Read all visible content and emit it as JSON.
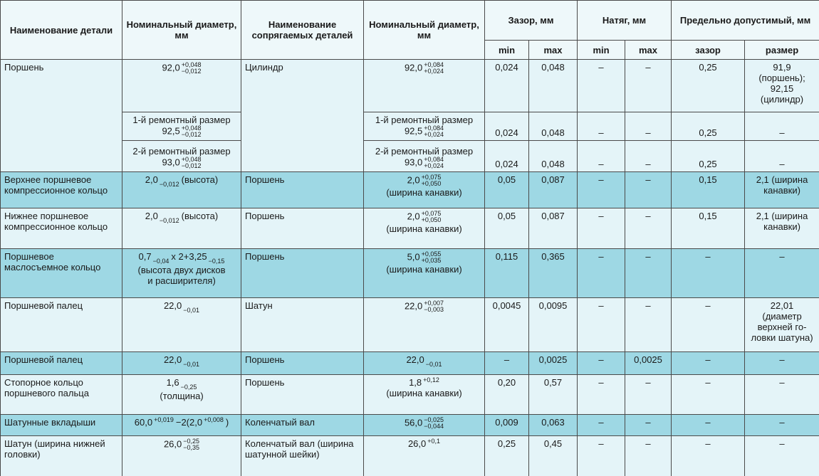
{
  "header": {
    "columns": [
      "Наименование детали",
      "Номинальный диаметр, мм",
      "Наименование сопрягаемых деталей",
      "Номинальный диаметр, мм",
      "Зазор, мм",
      "Натяг, мм",
      "Предельно допустимый, мм"
    ],
    "subcolumns": [
      "min",
      "max",
      "min",
      "max",
      "зазор",
      "размер"
    ]
  },
  "rows": [
    {
      "part": "Поршень",
      "mating": "Цилиндр",
      "fits": [
        {
          "diam": [
            [
              "92,0",
              {
                "sup": "+0,048",
                "sub": "−0,012"
              }
            ]
          ],
          "mating_diam": [
            [
              "92,0",
              {
                "sup": "+0,084",
                "sub": "+0,024"
              }
            ]
          ],
          "gap_min": "0,024",
          "gap_max": "0,048",
          "int_min": "–",
          "int_max": "–",
          "limit_gap": "0,25",
          "limit_size": [
            "91,9",
            "(поршень);",
            "92,15",
            "(цилиндр)"
          ]
        },
        {
          "diam": [
            "1-й ремонтный размер",
            [
              "92,5",
              {
                "sup": "+0,048",
                "sub": "−0,012"
              }
            ]
          ],
          "mating_diam": [
            "1-й ремонтный размер",
            [
              "92,5",
              {
                "sup": "+0,084",
                "sub": "+0,024"
              }
            ]
          ],
          "gap_min": "0,024",
          "gap_max": "0,048",
          "int_min": "–",
          "int_max": "–",
          "limit_gap": "0,25",
          "limit_size": "–"
        },
        {
          "diam": [
            "2-й ремонтный размер",
            [
              "93,0",
              {
                "sup": "+0,048",
                "sub": "−0,012"
              }
            ]
          ],
          "mating_diam": [
            "2-й ремонтный размер",
            [
              "93,0",
              {
                "sup": "+0,084",
                "sub": "+0,024"
              }
            ]
          ],
          "gap_min": "0,024",
          "gap_max": "0,048",
          "int_min": "–",
          "int_max": "–",
          "limit_gap": "0,25",
          "limit_size": "–"
        }
      ]
    },
    {
      "part": "Верхнее поршневое компрессионное кольцо",
      "mating": "Поршень",
      "fits": [
        {
          "diam": [
            [
              "2,0",
              {
                "sub": "−0,012"
              },
              "(высота)"
            ]
          ],
          "mating_diam": [
            [
              "2,0",
              {
                "sup": "+0,075",
                "sub": "+0,050"
              }
            ],
            "(ширина канавки)"
          ],
          "gap_min": "0,05",
          "gap_max": "0,087",
          "int_min": "–",
          "int_max": "–",
          "limit_gap": "0,15",
          "limit_size": "2,1 (ширина канавки)"
        }
      ]
    },
    {
      "part": "Нижнее поршневое компрессионное кольцо",
      "mating": "Поршень",
      "fits": [
        {
          "diam": [
            [
              "2,0",
              {
                "sub": "−0,012"
              },
              "(высота)"
            ]
          ],
          "mating_diam": [
            [
              "2,0",
              {
                "sup": "+0,075",
                "sub": "+0,050"
              }
            ],
            "(ширина канавки)"
          ],
          "gap_min": "0,05",
          "gap_max": "0,087",
          "int_min": "–",
          "int_max": "–",
          "limit_gap": "0,15",
          "limit_size": "2,1 (ширина канавки)"
        }
      ]
    },
    {
      "part": "Поршневое маслосъемное кольцо",
      "mating": "Поршень",
      "fits": [
        {
          "diam": [
            [
              "0,7",
              {
                "sub": "−0,04"
              },
              "x 2+3,25",
              {
                "sub": "−0,15"
              }
            ],
            "(высота двух дисков",
            "и расширителя)"
          ],
          "mating_diam": [
            [
              "5,0",
              {
                "sup": "+0,055",
                "sub": "+0,035"
              }
            ],
            "(ширина канавки)"
          ],
          "gap_min": "0,115",
          "gap_max": "0,365",
          "int_min": "–",
          "int_max": "–",
          "limit_gap": "–",
          "limit_size": "–"
        }
      ]
    },
    {
      "part": "Поршневой палец",
      "mating": "Шатун",
      "fits": [
        {
          "diam": [
            [
              "22,0",
              {
                "sub": "−0,01"
              }
            ]
          ],
          "mating_diam": [
            [
              "22,0",
              {
                "sup": "+0,007",
                "sub": "−0,003"
              }
            ]
          ],
          "gap_min": "0,0045",
          "gap_max": "0,0095",
          "int_min": "–",
          "int_max": "–",
          "limit_gap": "–",
          "limit_size": [
            "22,01",
            "(диаметр",
            "верхней го-",
            "ловки шатуна)"
          ]
        }
      ]
    },
    {
      "part": "Поршневой палец",
      "mating": "Поршень",
      "fits": [
        {
          "diam": [
            [
              "22,0",
              {
                "sub": "−0,01"
              }
            ]
          ],
          "mating_diam": [
            [
              "22,0",
              {
                "sub": "−0,01"
              }
            ]
          ],
          "gap_min": "–",
          "gap_max": "0,0025",
          "int_min": "–",
          "int_max": "0,0025",
          "limit_gap": "–",
          "limit_size": "–"
        }
      ]
    },
    {
      "part": "Стопорное кольцо поршневого пальца",
      "mating": "Поршень",
      "fits": [
        {
          "diam": [
            [
              "1,6",
              {
                "sub": "−0,25"
              }
            ],
            "(толщина)"
          ],
          "mating_diam": [
            [
              "1,8",
              {
                "sup": "+0,12"
              }
            ],
            "(ширина канавки)"
          ],
          "gap_min": "0,20",
          "gap_max": "0,57",
          "int_min": "–",
          "int_max": "–",
          "limit_gap": "–",
          "limit_size": "–"
        }
      ]
    },
    {
      "part": "Шатунные вкладыши",
      "mating": "Коленчатый вал",
      "fits": [
        {
          "diam": [
            [
              "60,0",
              {
                "sup": "+0,019"
              },
              "−2(2,0",
              {
                "sup": "+0,008"
              },
              ")"
            ]
          ],
          "mating_diam": [
            [
              "56,0",
              {
                "sup": "−0,025",
                "sub": "−0,044"
              }
            ]
          ],
          "gap_min": "0,009",
          "gap_max": "0,063",
          "int_min": "–",
          "int_max": "–",
          "limit_gap": "–",
          "limit_size": "–"
        }
      ]
    },
    {
      "part": "Шатун (ширина нижней головки)",
      "mating": "Коленчатый вал (ширина шатунной шейки)",
      "fits": [
        {
          "diam": [
            [
              "26,0",
              {
                "sup": "−0,25",
                "sub": "−0,35"
              }
            ]
          ],
          "mating_diam": [
            [
              "26,0",
              {
                "sup": "+0,1"
              }
            ]
          ],
          "gap_min": "0,25",
          "gap_max": "0,45",
          "int_min": "–",
          "int_max": "–",
          "limit_gap": "–",
          "limit_size": "–"
        }
      ]
    }
  ]
}
